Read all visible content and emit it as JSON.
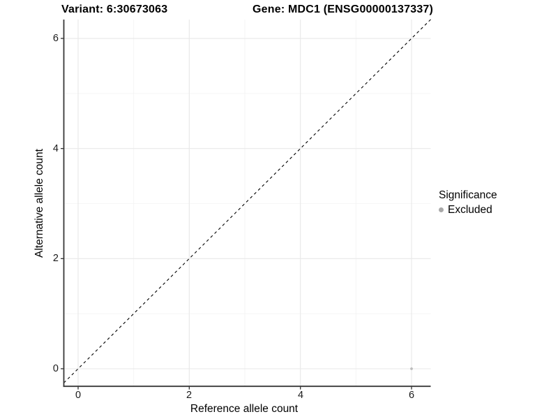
{
  "chart_data": {
    "type": "scatter",
    "title_left": "Variant: 6:30673063",
    "title_right": "Gene: MDC1 (ENSG00000137337)",
    "xlabel": "Reference allele count",
    "ylabel": "Alternative allele count",
    "xlim": [
      -0.26,
      6.34
    ],
    "ylim": [
      -0.32,
      6.34
    ],
    "x_ticks": [
      0,
      2,
      4,
      6
    ],
    "y_ticks": [
      0,
      2,
      4,
      6
    ],
    "x_minor_ticks": [
      1,
      3,
      5
    ],
    "y_minor_ticks": [
      1,
      3,
      5
    ],
    "grid": "major and minor gridlines, light gray on white panel",
    "reference_line": {
      "kind": "identity",
      "intercept": 0,
      "slope": 1,
      "style": "dashed",
      "color": "#000000"
    },
    "series": [
      {
        "name": "Excluded",
        "color": "#bcbcbc",
        "points": [
          [
            6,
            0
          ]
        ]
      }
    ],
    "legend": {
      "title": "Significance",
      "position": "right",
      "entries": [
        {
          "label": "Excluded",
          "swatch_color": "#a9a9a9"
        }
      ]
    }
  },
  "colors": {
    "axis_line": "#383838",
    "tick_mark": "#333333",
    "grid_major": "#e8e8e8",
    "grid_minor": "#f3f3f3",
    "text": "#000000",
    "background": "#ffffff"
  }
}
